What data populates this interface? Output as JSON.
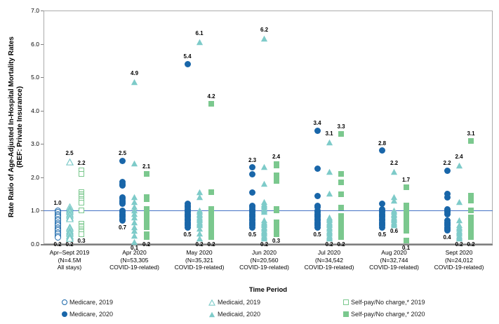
{
  "chart_data": {
    "type": "scatter",
    "title": "",
    "y_axis": {
      "label_lines": [
        "Rate Ratio of Age-Adjusted In-Hospital Mortality Rates",
        "(REF: Private Insurance)"
      ],
      "min": 0,
      "max": 7,
      "tick_labels": [
        "0.0",
        "1.0",
        "2.0",
        "3.0",
        "4.0",
        "5.0",
        "6.0",
        "7.0"
      ]
    },
    "x_axis": {
      "label": "Time Period"
    },
    "reference_line": 1.0,
    "series_meta": {
      "medicare": {
        "shape": "circle",
        "color": "#1966A9"
      },
      "medicaid": {
        "shape": "triangle",
        "color": "#7ECBC9"
      },
      "selfpay": {
        "shape": "square",
        "color": "#7BC88E"
      }
    },
    "groups": [
      {
        "label_lines": [
          "Apr–Sept 2019",
          "(N=4.5M",
          "All stays)"
        ],
        "year": "2019",
        "marker_style": "open",
        "series": {
          "medicare": {
            "values": [
              1.0,
              0.95,
              0.9,
              0.85,
              0.8,
              0.75,
              0.7,
              0.65,
              0.6,
              0.55,
              0.5,
              0.45,
              0.4,
              0.35,
              0.3,
              0.25,
              0.2
            ],
            "top_label": "1.0",
            "bottom_label": "0.2"
          },
          "medicaid": {
            "values": [
              2.5,
              1.15,
              1.1,
              1.05,
              1.0,
              0.95,
              0.9,
              0.85,
              0.8,
              0.55,
              0.5,
              0.45,
              0.4,
              0.35,
              0.3,
              0.25,
              0.2
            ],
            "top_label": "2.5",
            "bottom_label": "0.2"
          },
          "selfpay": {
            "values": [
              2.2,
              2.1,
              1.55,
              1.5,
              1.45,
              1.4,
              1.35,
              1.3,
              1.25,
              1.0,
              0.6,
              0.55,
              0.5,
              0.45,
              0.4,
              0.35,
              0.3
            ],
            "top_label": "2.2",
            "bottom_label": "0.3"
          }
        }
      },
      {
        "label_lines": [
          "Apr 2020",
          "(N=53,305",
          "COVID-19-related)"
        ],
        "year": "2020",
        "marker_style": "filled",
        "series": {
          "medicare": {
            "values": [
              2.5,
              1.85,
              1.8,
              1.75,
              1.4,
              1.35,
              1.3,
              1.25,
              1.2,
              1.0,
              0.95,
              0.9,
              0.85,
              0.8,
              0.75,
              0.7
            ],
            "top_label": "2.5",
            "bottom_label": "0.7"
          },
          "medicaid": {
            "values": [
              4.9,
              2.45,
              1.45,
              1.3,
              1.15,
              1.05,
              0.95,
              0.85,
              0.7,
              0.55,
              0.45,
              0.3,
              0.1
            ],
            "top_label": "4.9",
            "bottom_label": "0.1"
          },
          "selfpay": {
            "values": [
              2.1,
              1.4,
              1.35,
              1.05,
              1.0,
              0.95,
              0.9,
              0.85,
              0.8,
              0.75,
              0.7,
              0.65,
              0.6,
              0.55,
              0.5,
              0.3,
              0.25,
              0.2
            ],
            "top_label": "2.1",
            "bottom_label": "0.2"
          }
        }
      },
      {
        "label_lines": [
          "May 2020",
          "(N=35,321",
          "COVID-19-related)"
        ],
        "year": "2020",
        "marker_style": "filled",
        "series": {
          "medicare": {
            "values": [
              5.4,
              1.2,
              1.15,
              1.1,
              1.05,
              1.0,
              0.95,
              0.9,
              0.85,
              0.8,
              0.75,
              0.7,
              0.65,
              0.6,
              0.55,
              0.5
            ],
            "top_label": "5.4",
            "bottom_label": "0.5"
          },
          "medicaid": {
            "values": [
              6.1,
              1.6,
              1.45,
              1.05,
              1.0,
              0.95,
              0.9,
              0.85,
              0.8,
              0.75,
              0.7,
              0.65,
              0.6,
              0.5,
              0.35,
              0.2
            ],
            "top_label": "6.1",
            "bottom_label": "0.2"
          },
          "selfpay": {
            "values": [
              4.2,
              1.55,
              1.05,
              1.0,
              0.85,
              0.8,
              0.75,
              0.7,
              0.65,
              0.6,
              0.5,
              0.45,
              0.4,
              0.35,
              0.3,
              0.25,
              0.2
            ],
            "top_label": "4.2",
            "bottom_label": "0.2"
          }
        }
      },
      {
        "label_lines": [
          "Jun 2020",
          "(N=20,560",
          "COVID-19-related)"
        ],
        "year": "2020",
        "marker_style": "filled",
        "series": {
          "medicare": {
            "values": [
              2.3,
              2.1,
              1.55,
              1.15,
              1.1,
              1.05,
              1.0,
              0.95,
              0.9,
              0.85,
              0.8,
              0.75,
              0.7,
              0.65,
              0.6,
              0.55,
              0.5
            ],
            "top_label": "2.3",
            "bottom_label": "0.5"
          },
          "medicaid": {
            "values": [
              6.2,
              2.35,
              1.85,
              1.3,
              1.25,
              1.2,
              1.15,
              1.1,
              1.05,
              1.0,
              0.75,
              0.7,
              0.65,
              0.6,
              0.55,
              0.5,
              0.45,
              0.4,
              0.35,
              0.3,
              0.25,
              0.2
            ],
            "top_label": "6.2",
            "bottom_label": "0.2"
          },
          "selfpay": {
            "values": [
              2.4,
              2.35,
              2.05,
              1.9,
              1.05,
              1.0,
              0.65,
              0.6,
              0.55,
              0.5,
              0.45,
              0.4,
              0.35,
              0.3
            ],
            "top_label": "2.4",
            "bottom_label": "0.3"
          }
        }
      },
      {
        "label_lines": [
          "Jul 2020",
          "(N=34,542",
          "COVID-19-related)"
        ],
        "year": "2020",
        "marker_style": "filled",
        "series": {
          "medicare": {
            "values": [
              3.4,
              2.25,
              1.45,
              1.15,
              1.1,
              1.0,
              0.95,
              0.9,
              0.85,
              0.8,
              0.75,
              0.7,
              0.65,
              0.6,
              0.55,
              0.5
            ],
            "top_label": "3.4",
            "bottom_label": "0.5"
          },
          "medicaid": {
            "values": [
              3.1,
              2.2,
              1.55,
              0.85,
              0.8,
              0.75,
              0.7,
              0.65,
              0.6,
              0.55,
              0.5,
              0.45,
              0.4,
              0.35,
              0.3,
              0.25,
              0.2
            ],
            "top_label": "3.1",
            "bottom_label": "0.2"
          },
          "selfpay": {
            "values": [
              3.3,
              2.1,
              1.85,
              1.5,
              1.1,
              0.85,
              0.8,
              0.75,
              0.7,
              0.65,
              0.6,
              0.55,
              0.5,
              0.45,
              0.4,
              0.35,
              0.3,
              0.25,
              0.2
            ],
            "top_label": "3.3",
            "bottom_label": "0.2"
          }
        }
      },
      {
        "label_lines": [
          "Aug 2020",
          "(N=32,744",
          "COVID-19-related)"
        ],
        "year": "2020",
        "marker_style": "filled",
        "series": {
          "medicare": {
            "values": [
              2.8,
              1.2,
              1.05,
              1.0,
              0.95,
              0.9,
              0.85,
              0.8,
              0.75,
              0.7,
              0.65,
              0.6,
              0.55,
              0.5
            ],
            "top_label": "2.8",
            "bottom_label": "0.5"
          },
          "medicaid": {
            "values": [
              2.2,
              1.45,
              1.35,
              1.05,
              1.0,
              0.95,
              0.9,
              0.85,
              0.8,
              0.75,
              0.7,
              0.65,
              0.6
            ],
            "top_label": "2.2",
            "bottom_label": "0.6"
          },
          "selfpay": {
            "values": [
              1.7,
              1.15,
              1.0,
              0.95,
              0.9,
              0.85,
              0.8,
              0.75,
              0.7,
              0.65,
              0.6,
              0.55,
              0.5,
              0.45,
              0.4,
              0.1
            ],
            "top_label": "1.7",
            "bottom_label": "0.1"
          }
        }
      },
      {
        "label_lines": [
          "Sept 2020",
          "(N=24,012",
          "COVID-19-related)"
        ],
        "year": "2020",
        "marker_style": "filled",
        "series": {
          "medicare": {
            "values": [
              2.2,
              1.5,
              1.4,
              1.05,
              1.0,
              0.95,
              0.9,
              0.7,
              0.65,
              0.6,
              0.55,
              0.5,
              0.45,
              0.4
            ],
            "top_label": "2.2",
            "bottom_label": "0.4"
          },
          "medicaid": {
            "values": [
              2.4,
              1.3,
              0.75,
              0.6,
              0.55,
              0.5,
              0.45,
              0.4,
              0.35,
              0.3,
              0.25,
              0.2
            ],
            "top_label": "2.4",
            "bottom_label": "0.2"
          },
          "selfpay": {
            "values": [
              3.1,
              1.45,
              1.35,
              1.3,
              1.0,
              0.8,
              0.75,
              0.7,
              0.65,
              0.6,
              0.55,
              0.5,
              0.45,
              0.4,
              0.35,
              0.3,
              0.25,
              0.2
            ],
            "top_label": "3.1",
            "bottom_label": "0.2"
          }
        }
      }
    ],
    "legend": [
      {
        "series": "medicare",
        "variant": "open",
        "label": "Medicare, 2019"
      },
      {
        "series": "medicare",
        "variant": "filled",
        "label": "Medicare, 2020"
      },
      {
        "series": "medicaid",
        "variant": "open",
        "label": "Medicaid, 2019"
      },
      {
        "series": "medicaid",
        "variant": "filled",
        "label": "Medicaid, 2020"
      },
      {
        "series": "selfpay",
        "variant": "open",
        "label": "Self-pay/No charge,* 2019"
      },
      {
        "series": "selfpay",
        "variant": "filled",
        "label": "Self-pay/No charge,* 2020"
      }
    ]
  },
  "colors": {
    "reference_line": "#4472C4",
    "plot_border": "#ABABAB",
    "axis": "#7F7F7F"
  }
}
